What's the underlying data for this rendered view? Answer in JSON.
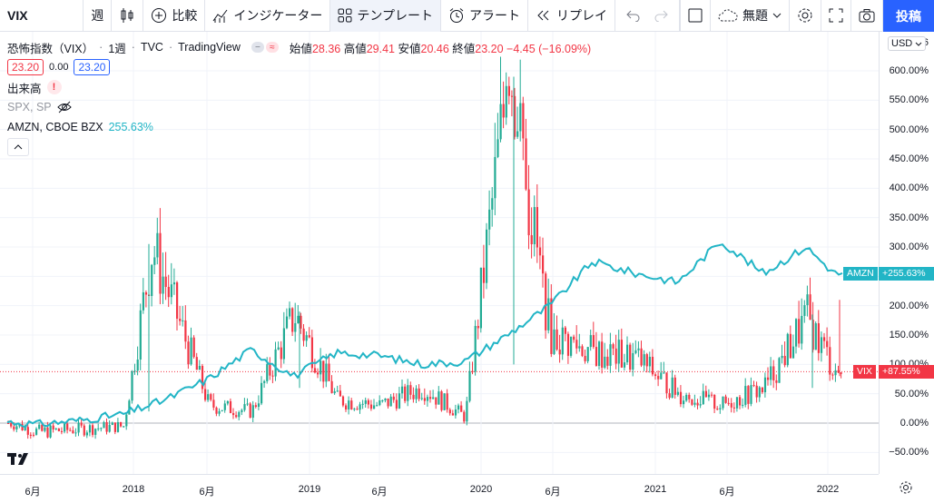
{
  "toolbar": {
    "symbol": "VIX",
    "interval": "週",
    "compare": "比較",
    "indicators": "インジケーター",
    "templates": "テンプレート",
    "alert": "アラート",
    "replay": "リプレイ",
    "layout_name": "無題",
    "publish": "投稿"
  },
  "legend": {
    "title": "恐怖指数（VIX）",
    "interval": "1週",
    "source": "TVC",
    "platform": "TradingView",
    "open_label": "始値",
    "open": "28.36",
    "high_label": "高値",
    "high": "29.41",
    "low_label": "安値",
    "low": "20.46",
    "close_label": "終値",
    "close": "23.20",
    "change": "−4.45 (−16.09%)",
    "bid": "23.20",
    "spread": "0.00",
    "ask": "23.20",
    "volume": "出来高",
    "spx": "SPX, SP",
    "amzn": "AMZN, CBOE BZX",
    "amzn_value": "255.63%"
  },
  "yaxis": {
    "currency": "USD",
    "top_partial": "6",
    "ticks": [
      "600.00%",
      "550.00%",
      "500.00%",
      "450.00%",
      "400.00%",
      "350.00%",
      "300.00%",
      "250.00%",
      "200.00%",
      "150.00%",
      "100.00%",
      "50.00%",
      "0.00%",
      "−50.00%"
    ],
    "amzn_tag": "+255.63%",
    "amzn_tag_name": "AMZN",
    "vix_tag": "+87.55%",
    "vix_tag_name": "VIX"
  },
  "xaxis": {
    "ticks": [
      "6月",
      "2018",
      "6月",
      "2019",
      "6月",
      "2020",
      "6月",
      "2021",
      "6月",
      "2022"
    ]
  },
  "colors": {
    "up": "#22ab94",
    "down": "#f23645",
    "amzn": "#22b5c6",
    "accent": "#2962ff"
  },
  "chart_data": {
    "type": "line",
    "series": [
      {
        "name": "AMZN",
        "x": [
          "2017-04",
          "2017-06",
          "2017-09",
          "2017-12",
          "2018-03",
          "2018-06",
          "2018-09",
          "2018-12",
          "2019-03",
          "2019-06",
          "2019-09",
          "2019-12",
          "2020-03",
          "2020-06",
          "2020-09",
          "2020-12",
          "2021-03",
          "2021-06",
          "2021-09",
          "2021-12",
          "2022-02"
        ],
        "values": [
          2,
          -2,
          5,
          15,
          40,
          75,
          125,
          80,
          120,
          115,
          100,
          105,
          150,
          200,
          275,
          255,
          240,
          310,
          255,
          300,
          255
        ]
      },
      {
        "name": "VIX",
        "x": [
          "2017-04",
          "2017-06",
          "2017-09",
          "2017-12",
          "2018-02",
          "2018-06",
          "2018-09",
          "2018-12",
          "2019-03",
          "2019-06",
          "2019-09",
          "2019-12",
          "2020-03",
          "2020-06",
          "2020-09",
          "2020-12",
          "2021-03",
          "2021-06",
          "2021-09",
          "2021-12",
          "2022-02"
        ],
        "values": [
          0,
          -15,
          -10,
          -5,
          300,
          30,
          20,
          185,
          40,
          30,
          60,
          10,
          590,
          150,
          120,
          110,
          50,
          30,
          60,
          180,
          88
        ]
      }
    ],
    "ylim": [
      -70,
      630
    ]
  }
}
